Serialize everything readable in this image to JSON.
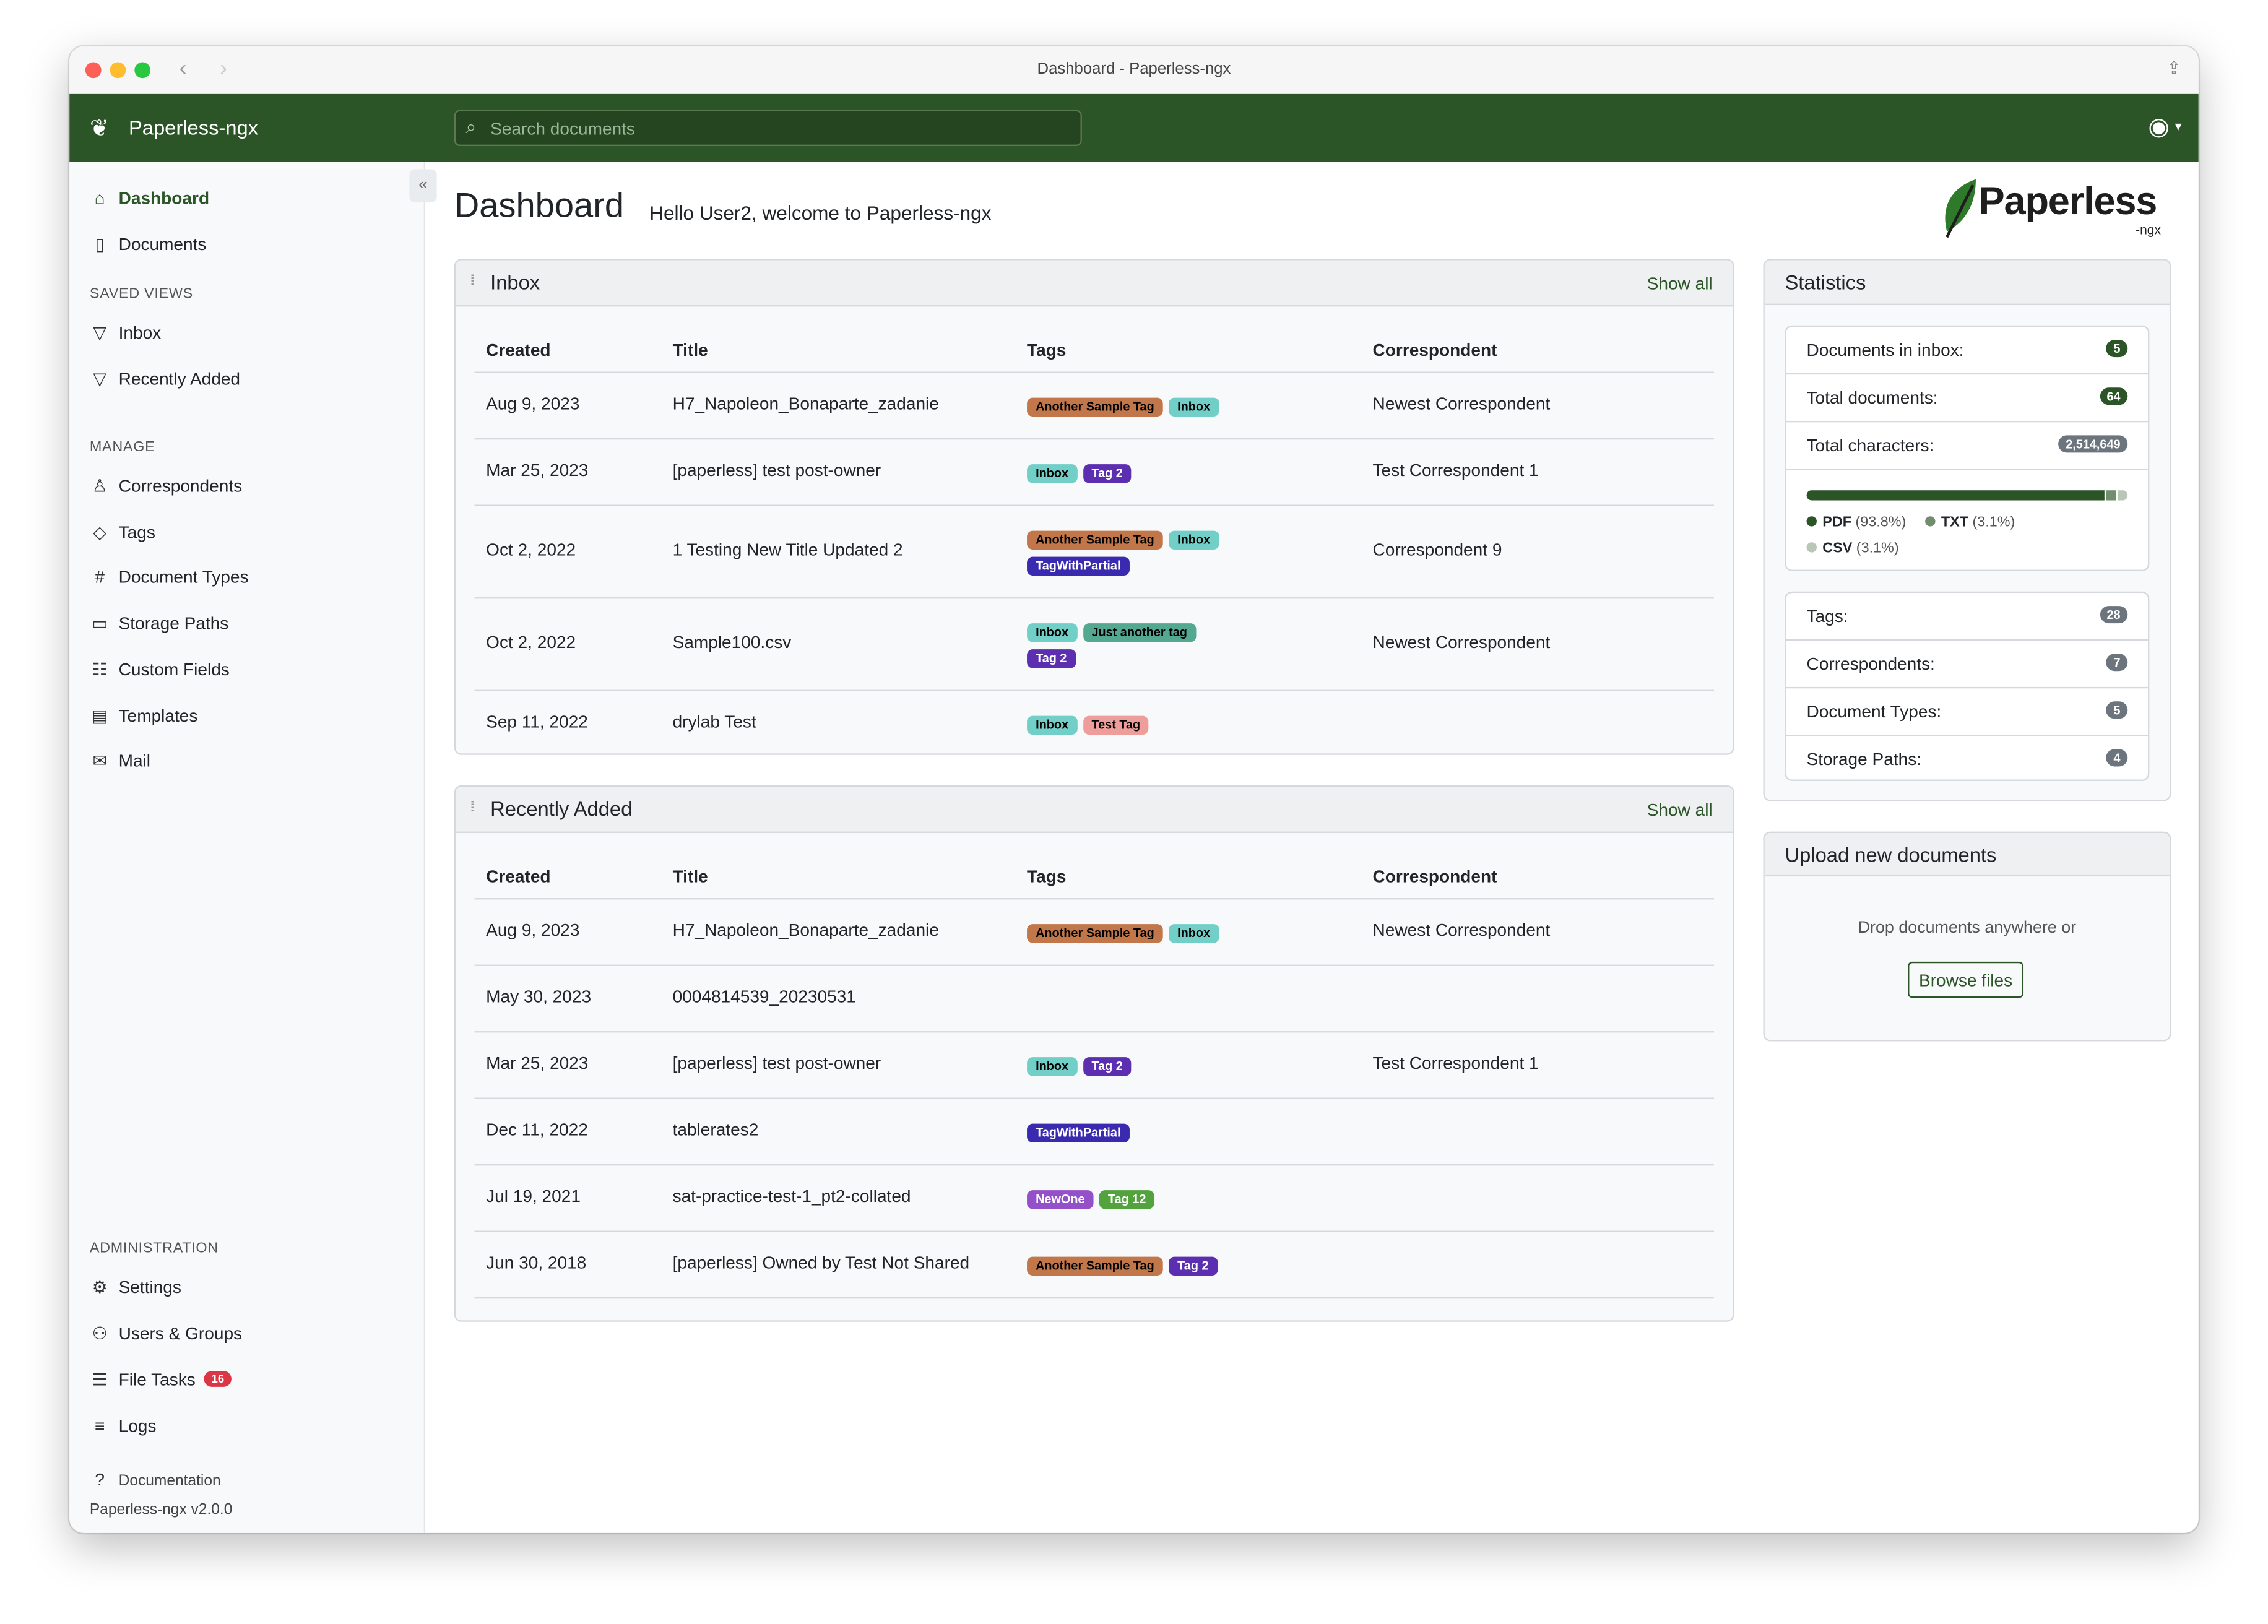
{
  "window": {
    "title": "Dashboard - Paperless-ngx"
  },
  "navbar": {
    "brand": "Paperless-ngx",
    "search_placeholder": "Search documents",
    "brand_color": "#2b5427"
  },
  "sidebar": {
    "main": [
      {
        "label": "Dashboard",
        "icon": "house-icon"
      },
      {
        "label": "Documents",
        "icon": "file-icon"
      }
    ],
    "saved_views_title": "SAVED VIEWS",
    "saved_views": [
      {
        "label": "Inbox",
        "icon": "funnel-icon"
      },
      {
        "label": "Recently Added",
        "icon": "funnel-icon"
      }
    ],
    "manage_title": "MANAGE",
    "manage": [
      {
        "label": "Correspondents",
        "icon": "person-icon"
      },
      {
        "label": "Tags",
        "icon": "tags-icon"
      },
      {
        "label": "Document Types",
        "icon": "hash-icon"
      },
      {
        "label": "Storage Paths",
        "icon": "folder-icon"
      },
      {
        "label": "Custom Fields",
        "icon": "ui-radios-icon"
      },
      {
        "label": "Templates",
        "icon": "file-text-icon"
      },
      {
        "label": "Mail",
        "icon": "envelope-icon"
      }
    ],
    "admin_title": "ADMINISTRATION",
    "admin": [
      {
        "label": "Settings",
        "icon": "gear-icon"
      },
      {
        "label": "Users & Groups",
        "icon": "people-icon"
      },
      {
        "label": "File Tasks",
        "icon": "list-task-icon",
        "badge": "16"
      },
      {
        "label": "Logs",
        "icon": "text-list-icon"
      }
    ],
    "documentation": "Documentation",
    "version": "Paperless-ngx v2.0.0"
  },
  "header": {
    "title": "Dashboard",
    "greeting": "Hello User2, welcome to Paperless-ngx",
    "logo_text": "Paperless",
    "logo_sub": "-ngx"
  },
  "columns": [
    "Created",
    "Title",
    "Tags",
    "Correspondent"
  ],
  "tag_colors": {
    "Another Sample Tag": [
      "#c2774a",
      "#000000"
    ],
    "Inbox": [
      "#72cfc8",
      "#000000"
    ],
    "Tag 2": [
      "#5b2fb0",
      "#ffffff"
    ],
    "TagWithPartial": [
      "#3a2aaf",
      "#ffffff"
    ],
    "Just another tag": [
      "#55a890",
      "#000000"
    ],
    "Test Tag": [
      "#ee9e9a",
      "#000000"
    ],
    "NewOne": [
      "#9450c8",
      "#ffffff"
    ],
    "Tag 12": [
      "#52a23e",
      "#ffffff"
    ]
  },
  "inbox": {
    "title": "Inbox",
    "show_all": "Show all",
    "rows": [
      {
        "created": "Aug 9, 2023",
        "title": "H7_Napoleon_Bonaparte_zadanie",
        "tags": [
          "Another Sample Tag",
          "Inbox"
        ],
        "correspondent": "Newest Correspondent"
      },
      {
        "created": "Mar 25, 2023",
        "title": "[paperless] test post-owner",
        "tags": [
          "Inbox",
          "Tag 2"
        ],
        "correspondent": "Test Correspondent 1"
      },
      {
        "created": "Oct 2, 2022",
        "title": "1 Testing New Title Updated 2",
        "tags": [
          "Another Sample Tag",
          "Inbox",
          "TagWithPartial"
        ],
        "correspondent": "Correspondent 9"
      },
      {
        "created": "Oct 2, 2022",
        "title": "Sample100.csv",
        "tags": [
          "Inbox",
          "Just another tag",
          "Tag 2"
        ],
        "correspondent": "Newest Correspondent"
      },
      {
        "created": "Sep 11, 2022",
        "title": "drylab Test",
        "tags": [
          "Inbox",
          "Test Tag"
        ],
        "correspondent": ""
      }
    ]
  },
  "recent": {
    "title": "Recently Added",
    "show_all": "Show all",
    "rows": [
      {
        "created": "Aug 9, 2023",
        "title": "H7_Napoleon_Bonaparte_zadanie",
        "tags": [
          "Another Sample Tag",
          "Inbox"
        ],
        "correspondent": "Newest Correspondent"
      },
      {
        "created": "May 30, 2023",
        "title": "0004814539_20230531",
        "tags": [],
        "correspondent": ""
      },
      {
        "created": "Mar 25, 2023",
        "title": "[paperless] test post-owner",
        "tags": [
          "Inbox",
          "Tag 2"
        ],
        "correspondent": "Test Correspondent 1"
      },
      {
        "created": "Dec 11, 2022",
        "title": "tablerates2",
        "tags": [
          "TagWithPartial"
        ],
        "correspondent": ""
      },
      {
        "created": "Jul 19, 2021",
        "title": "sat-practice-test-1_pt2-collated",
        "tags": [
          "NewOne",
          "Tag 12"
        ],
        "correspondent": ""
      },
      {
        "created": "Jun 30, 2018",
        "title": "[paperless] Owned by Test Not Shared",
        "tags": [
          "Another Sample Tag",
          "Tag 2"
        ],
        "correspondent": ""
      }
    ]
  },
  "statistics": {
    "title": "Statistics",
    "top": [
      {
        "label": "Documents in inbox:",
        "value": "5",
        "color": "#2b5427"
      },
      {
        "label": "Total documents:",
        "value": "64",
        "color": "#2b5427"
      },
      {
        "label": "Total characters:",
        "value": "2,514,649",
        "color": "#6c757d"
      }
    ],
    "file_types": [
      {
        "name": "PDF",
        "pct_label": "(93.8%)",
        "pct": 93.8,
        "color": "#2b5427"
      },
      {
        "name": "TXT",
        "pct_label": "(3.1%)",
        "pct": 3.1,
        "color": "#718d6e"
      },
      {
        "name": "CSV",
        "pct_label": "(3.1%)",
        "pct": 3.1,
        "color": "#b8c7b6"
      }
    ],
    "bottom": [
      {
        "label": "Tags:",
        "value": "28"
      },
      {
        "label": "Correspondents:",
        "value": "7"
      },
      {
        "label": "Document Types:",
        "value": "5"
      },
      {
        "label": "Storage Paths:",
        "value": "4"
      }
    ]
  },
  "upload": {
    "title": "Upload new documents",
    "drop_text": "Drop documents anywhere or",
    "browse": "Browse files"
  }
}
